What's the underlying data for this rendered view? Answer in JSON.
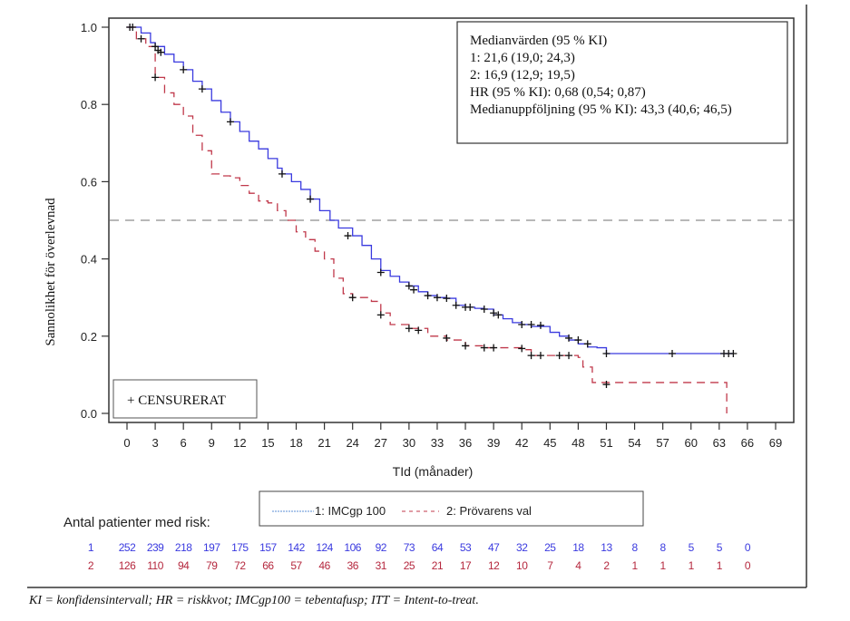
{
  "chart_data": {
    "type": "line",
    "subtype": "kaplan-meier",
    "title": "",
    "xlabel": "TId (månader)",
    "ylabel": "Sannolikhet för överlevnad",
    "xlim": [
      0,
      69
    ],
    "ylim": [
      0,
      1.0
    ],
    "x_ticks": [
      "0",
      "3",
      "6",
      "9",
      "12",
      "15",
      "18",
      "21",
      "24",
      "27",
      "30",
      "33",
      "36",
      "39",
      "42",
      "45",
      "48",
      "51",
      "54",
      "57",
      "60",
      "63",
      "66",
      "69"
    ],
    "y_ticks": [
      "0.0",
      "0.2",
      "0.4",
      "0.6",
      "0.8",
      "1.0"
    ],
    "grid": false,
    "reference_line": {
      "y": 0.5,
      "style": "dashed",
      "color": "#999999"
    },
    "series": [
      {
        "name": "1: IMCgp 100",
        "color": "#3a3adf",
        "style": "solid",
        "points": [
          [
            0,
            1.0
          ],
          [
            1,
            1.0
          ],
          [
            1.5,
            0.985
          ],
          [
            2.5,
            0.96
          ],
          [
            3,
            0.95
          ],
          [
            4,
            0.93
          ],
          [
            5,
            0.91
          ],
          [
            6,
            0.89
          ],
          [
            7,
            0.86
          ],
          [
            8,
            0.84
          ],
          [
            9,
            0.81
          ],
          [
            10,
            0.78
          ],
          [
            11,
            0.755
          ],
          [
            12,
            0.73
          ],
          [
            13,
            0.705
          ],
          [
            14,
            0.685
          ],
          [
            15,
            0.66
          ],
          [
            16,
            0.635
          ],
          [
            16.5,
            0.62
          ],
          [
            17.5,
            0.6
          ],
          [
            18.5,
            0.58
          ],
          [
            19.5,
            0.555
          ],
          [
            20.5,
            0.525
          ],
          [
            21.6,
            0.5
          ],
          [
            22.5,
            0.48
          ],
          [
            24,
            0.46
          ],
          [
            25,
            0.435
          ],
          [
            26,
            0.4
          ],
          [
            27,
            0.37
          ],
          [
            28,
            0.355
          ],
          [
            29,
            0.34
          ],
          [
            30,
            0.33
          ],
          [
            31,
            0.315
          ],
          [
            32,
            0.305
          ],
          [
            33,
            0.3
          ],
          [
            34,
            0.298
          ],
          [
            35,
            0.28
          ],
          [
            36,
            0.275
          ],
          [
            37,
            0.272
          ],
          [
            38,
            0.27
          ],
          [
            39,
            0.255
          ],
          [
            40,
            0.245
          ],
          [
            41,
            0.235
          ],
          [
            42,
            0.23
          ],
          [
            43,
            0.225
          ],
          [
            44,
            0.225
          ],
          [
            45,
            0.21
          ],
          [
            46,
            0.2
          ],
          [
            47,
            0.19
          ],
          [
            48,
            0.18
          ],
          [
            49,
            0.172
          ],
          [
            50,
            0.17
          ],
          [
            51,
            0.155
          ],
          [
            58,
            0.155
          ],
          [
            64.5,
            0.155
          ]
        ],
        "censored": [
          [
            0.3,
            1.0
          ],
          [
            0.6,
            1.0
          ],
          [
            3,
            0.95
          ],
          [
            3.3,
            0.94
          ],
          [
            3.6,
            0.935
          ],
          [
            6,
            0.89
          ],
          [
            8,
            0.84
          ],
          [
            11,
            0.755
          ],
          [
            16.5,
            0.62
          ],
          [
            19.5,
            0.555
          ],
          [
            23.5,
            0.46
          ],
          [
            27,
            0.365
          ],
          [
            30,
            0.33
          ],
          [
            30.5,
            0.32
          ],
          [
            32,
            0.305
          ],
          [
            33,
            0.3
          ],
          [
            34,
            0.298
          ],
          [
            35,
            0.28
          ],
          [
            36,
            0.275
          ],
          [
            36.5,
            0.275
          ],
          [
            38,
            0.27
          ],
          [
            39,
            0.26
          ],
          [
            39.5,
            0.255
          ],
          [
            42,
            0.23
          ],
          [
            43,
            0.23
          ],
          [
            44,
            0.228
          ],
          [
            47,
            0.195
          ],
          [
            48,
            0.19
          ],
          [
            49,
            0.18
          ],
          [
            51,
            0.155
          ],
          [
            58,
            0.155
          ],
          [
            63.5,
            0.155
          ],
          [
            64,
            0.155
          ],
          [
            64.5,
            0.155
          ]
        ]
      },
      {
        "name": "2: Prövarens val",
        "color": "#c0394b",
        "style": "dashed",
        "points": [
          [
            0,
            1.0
          ],
          [
            0.8,
            1.0
          ],
          [
            1,
            0.97
          ],
          [
            2,
            0.95
          ],
          [
            3,
            0.87
          ],
          [
            4,
            0.83
          ],
          [
            5,
            0.8
          ],
          [
            6,
            0.77
          ],
          [
            7,
            0.72
          ],
          [
            8,
            0.68
          ],
          [
            9,
            0.62
          ],
          [
            10,
            0.615
          ],
          [
            11,
            0.61
          ],
          [
            12,
            0.59
          ],
          [
            13,
            0.57
          ],
          [
            14,
            0.55
          ],
          [
            15,
            0.545
          ],
          [
            16,
            0.525
          ],
          [
            16.9,
            0.5
          ],
          [
            18,
            0.47
          ],
          [
            19,
            0.45
          ],
          [
            20,
            0.42
          ],
          [
            21,
            0.4
          ],
          [
            22,
            0.35
          ],
          [
            23,
            0.31
          ],
          [
            24,
            0.3
          ],
          [
            26,
            0.29
          ],
          [
            27,
            0.26
          ],
          [
            28,
            0.23
          ],
          [
            30,
            0.22
          ],
          [
            32,
            0.2
          ],
          [
            34,
            0.19
          ],
          [
            36,
            0.175
          ],
          [
            38,
            0.17
          ],
          [
            42,
            0.165
          ],
          [
            43,
            0.15
          ],
          [
            48,
            0.145
          ],
          [
            48.5,
            0.12
          ],
          [
            49.5,
            0.08
          ],
          [
            63.8,
            0.08
          ],
          [
            63.8,
            0.0
          ]
        ],
        "censored": [
          [
            1.5,
            0.97
          ],
          [
            3,
            0.87
          ],
          [
            24,
            0.3
          ],
          [
            27,
            0.255
          ],
          [
            30,
            0.22
          ],
          [
            31,
            0.215
          ],
          [
            34,
            0.195
          ],
          [
            36,
            0.175
          ],
          [
            38,
            0.17
          ],
          [
            39,
            0.17
          ],
          [
            42,
            0.168
          ],
          [
            43,
            0.15
          ],
          [
            44,
            0.15
          ],
          [
            46,
            0.15
          ],
          [
            47,
            0.15
          ],
          [
            51,
            0.075
          ]
        ]
      }
    ],
    "stats_box": {
      "lines": [
        "Medianvärden (95 % KI)",
        "1: 21,6 (19,0; 24,3)",
        "2: 16,9 (12,9; 19,5)",
        "HR (95 % KI): 0,68 (0,54; 0,87)",
        "Medianuppföljning (95 % KI): 43,3 (40,6; 46,5)"
      ]
    },
    "censor_legend": "+ CENSURERAT",
    "legend": {
      "position": "bottom-center",
      "entries": [
        {
          "label": "1: IMCgp 100",
          "style": "solid",
          "color": "#3a3adf"
        },
        {
          "label": "2: Prövarens val",
          "style": "dashed",
          "color": "#c0394b"
        }
      ]
    },
    "risk_table": {
      "title": "Antal patienter med risk:",
      "rows": [
        {
          "label": "1",
          "color": "#3a3adf",
          "values": [
            "252",
            "239",
            "218",
            "197",
            "175",
            "157",
            "142",
            "124",
            "106",
            "92",
            "73",
            "64",
            "53",
            "47",
            "32",
            "25",
            "18",
            "13",
            "8",
            "8",
            "5",
            "5",
            "0"
          ]
        },
        {
          "label": "2",
          "color": "#b5283e",
          "values": [
            "126",
            "110",
            "94",
            "79",
            "72",
            "66",
            "57",
            "46",
            "36",
            "31",
            "25",
            "21",
            "17",
            "12",
            "10",
            "7",
            "4",
            "2",
            "1",
            "1",
            "1",
            "1",
            "0"
          ]
        }
      ]
    }
  },
  "footnote": "KI = konfidensintervall; HR = riskkvot; IMCgp100 = tebentafusp; ITT = Intent-to-treat."
}
